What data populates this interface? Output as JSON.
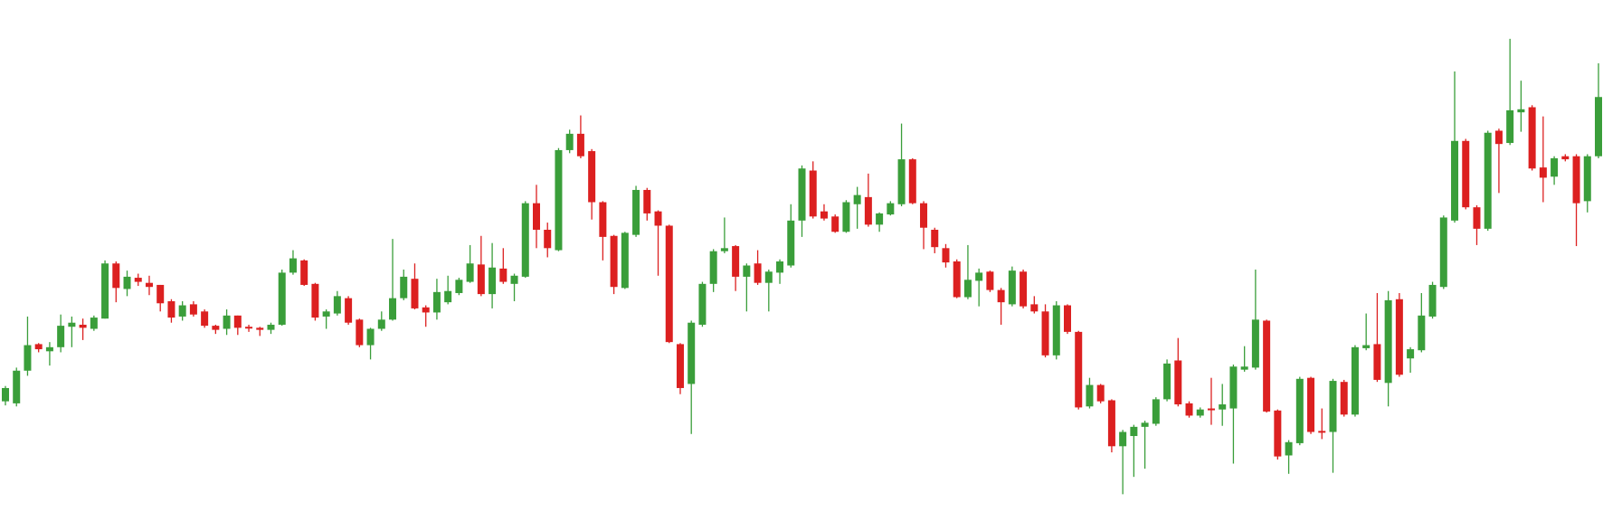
{
  "chart_data": {
    "type": "candlestick",
    "ylim": [
      0,
      520
    ],
    "up_color": "#3a9e3a",
    "down_color": "#dc2020",
    "open": [
      127,
      125,
      157,
      183,
      176,
      180,
      200,
      202,
      198,
      208,
      262,
      237,
      248,
      243,
      241,
      225,
      210,
      222,
      215,
      201,
      198,
      211,
      200,
      199,
      197,
      202,
      253,
      265,
      242,
      210,
      213,
      228,
      207,
      182,
      198,
      207,
      228,
      247,
      219,
      214,
      224,
      233,
      244,
      261,
      232,
      257,
      242,
      249,
      321,
      295,
      275,
      373,
      389,
      372,
      322,
      289,
      238,
      290,
      334,
      313,
      299,
      183,
      144,
      202,
      242,
      274,
      279,
      249,
      262,
      243,
      253,
      260,
      304,
      353,
      313,
      308,
      293,
      320,
      327,
      300,
      310,
      320,
      364,
      321,
      295,
      277,
      264,
      229,
      245,
      254,
      236,
      222,
      254,
      222,
      215,
      172,
      221,
      195,
      122,
      143,
      128,
      83,
      93,
      102,
      105,
      129,
      167,
      125,
      113,
      120,
      119,
      120,
      158,
      160,
      206,
      118,
      74,
      86,
      150,
      98,
      97,
      146,
      114,
      179,
      183,
      145,
      227,
      169,
      177,
      210,
      239,
      304,
      382,
      317,
      296,
      392,
      380,
      410,
      415,
      356,
      347,
      367,
      367,
      323,
      367
    ],
    "high": [
      142,
      160,
      210,
      184,
      185,
      212,
      210,
      208,
      211,
      265,
      264,
      255,
      252,
      250,
      241,
      227,
      225,
      225,
      217,
      202,
      217,
      211,
      202,
      200,
      204,
      256,
      275,
      266,
      243,
      217,
      235,
      230,
      208,
      199,
      215,
      286,
      256,
      262,
      221,
      247,
      250,
      248,
      280,
      289,
      282,
      277,
      252,
      323,
      339,
      302,
      375,
      393,
      407,
      374,
      323,
      290,
      293,
      338,
      336,
      314,
      300,
      184,
      206,
      244,
      276,
      307,
      280,
      262,
      275,
      256,
      266,
      320,
      358,
      362,
      320,
      310,
      324,
      337,
      350,
      312,
      323,
      399,
      365,
      323,
      297,
      281,
      266,
      280,
      257,
      255,
      238,
      259,
      256,
      230,
      222,
      225,
      222,
      196,
      150,
      144,
      129,
      99,
      104,
      108,
      131,
      168,
      189,
      127,
      121,
      150,
      144,
      163,
      181,
      256,
      207,
      119,
      89,
      151,
      151,
      120,
      149,
      148,
      182,
      213,
      233,
      235,
      233,
      180,
      233,
      244,
      309,
      450,
      384,
      319,
      392,
      394,
      482,
      441,
      417,
      406,
      367,
      369,
      369,
      369,
      458
    ],
    "low": [
      123,
      122,
      152,
      175,
      162,
      175,
      180,
      187,
      196,
      208,
      224,
      230,
      240,
      231,
      215,
      204,
      206,
      210,
      199,
      193,
      192,
      192,
      195,
      191,
      193,
      201,
      251,
      240,
      206,
      198,
      211,
      202,
      180,
      168,
      196,
      206,
      226,
      217,
      200,
      207,
      222,
      231,
      243,
      230,
      218,
      242,
      225,
      248,
      277,
      268,
      274,
      370,
      365,
      305,
      265,
      232,
      237,
      288,
      304,
      250,
      184,
      134,
      95,
      200,
      234,
      272,
      235,
      215,
      241,
      215,
      242,
      258,
      288,
      306,
      304,
      292,
      292,
      296,
      298,
      293,
      309,
      318,
      320,
      276,
      272,
      258,
      228,
      227,
      220,
      234,
      202,
      220,
      218,
      213,
      170,
      168,
      193,
      119,
      120,
      125,
      77,
      36,
      53,
      61,
      103,
      127,
      122,
      111,
      111,
      104,
      103,
      66,
      156,
      158,
      116,
      70,
      56,
      84,
      95,
      90,
      57,
      112,
      112,
      177,
      146,
      122,
      151,
      155,
      175,
      208,
      237,
      302,
      315,
      280,
      294,
      331,
      378,
      391,
      353,
      322,
      339,
      362,
      279,
      312,
      365
    ],
    "close": [
      140,
      157,
      182,
      178,
      180,
      201,
      204,
      199,
      209,
      262,
      238,
      249,
      244,
      239,
      223,
      209,
      221,
      212,
      201,
      197,
      211,
      199,
      199,
      197,
      202,
      253,
      267,
      241,
      209,
      215,
      230,
      204,
      182,
      198,
      207,
      228,
      249,
      218,
      214,
      234,
      235,
      246,
      262,
      232,
      258,
      244,
      250,
      321,
      295,
      277,
      373,
      389,
      367,
      322,
      288,
      239,
      292,
      334,
      311,
      299,
      185,
      140,
      204,
      242,
      274,
      277,
      249,
      260,
      243,
      254,
      264,
      304,
      355,
      308,
      306,
      293,
      322,
      329,
      300,
      311,
      321,
      364,
      321,
      297,
      278,
      263,
      229,
      246,
      253,
      236,
      224,
      255,
      220,
      215,
      172,
      221,
      195,
      121,
      143,
      127,
      83,
      97,
      102,
      106,
      129,
      164,
      124,
      113,
      119,
      119,
      124,
      161,
      161,
      207,
      117,
      73,
      87,
      149,
      97,
      97,
      147,
      114,
      180,
      182,
      148,
      226,
      153,
      178,
      211,
      241,
      307,
      382,
      317,
      296,
      390,
      379,
      412,
      413,
      355,
      346,
      365,
      364,
      321,
      367,
      425
    ]
  }
}
